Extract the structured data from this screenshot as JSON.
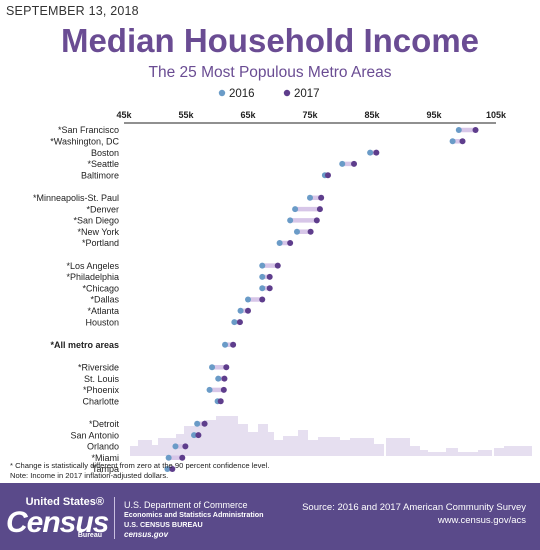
{
  "date": "SEPTEMBER 13, 2018",
  "chart_data": {
    "type": "dumbbell",
    "title": "Median Household Income",
    "subtitle": "The 25 Most Populous Metro Areas",
    "legend": [
      {
        "label": "2016",
        "color": "#6a9bc7"
      },
      {
        "label": "2017",
        "color": "#5e3d8c"
      }
    ],
    "xticks": [
      "45k",
      "55k",
      "65k",
      "75k",
      "85k",
      "95k",
      "105k"
    ],
    "xlim": [
      45000,
      105000
    ],
    "groups": [
      [
        {
          "name": "*San Francisco",
          "v2016": 99000,
          "v2017": 101700
        },
        {
          "name": "*Washington, DC",
          "v2016": 98000,
          "v2017": 99600
        },
        {
          "name": "Boston",
          "v2016": 84700,
          "v2017": 85700
        },
        {
          "name": "*Seattle",
          "v2016": 80200,
          "v2017": 82100
        },
        {
          "name": "Baltimore",
          "v2016": 77400,
          "v2017": 77900
        }
      ],
      [
        {
          "name": "*Minneapolis-St. Paul",
          "v2016": 75000,
          "v2017": 76800
        },
        {
          "name": "*Denver",
          "v2016": 72600,
          "v2017": 76600
        },
        {
          "name": "*San Diego",
          "v2016": 71800,
          "v2017": 76100
        },
        {
          "name": "*New York",
          "v2016": 72900,
          "v2017": 75100
        },
        {
          "name": "*Portland",
          "v2016": 70100,
          "v2017": 71800
        }
      ],
      [
        {
          "name": "*Los Angeles",
          "v2016": 67300,
          "v2017": 69800
        },
        {
          "name": "*Philadelphia",
          "v2016": 67300,
          "v2017": 68500
        },
        {
          "name": "*Chicago",
          "v2016": 67300,
          "v2017": 68500
        },
        {
          "name": "*Dallas",
          "v2016": 65000,
          "v2017": 67300
        },
        {
          "name": "*Atlanta",
          "v2016": 63800,
          "v2017": 65000
        },
        {
          "name": "Houston",
          "v2016": 62800,
          "v2017": 63700
        }
      ],
      [
        {
          "name": "*All metro areas",
          "v2016": 61300,
          "v2017": 62600,
          "bold": true
        }
      ],
      [
        {
          "name": "*Riverside",
          "v2016": 59200,
          "v2017": 61500
        },
        {
          "name": "St. Louis",
          "v2016": 60200,
          "v2017": 61200
        },
        {
          "name": "*Phoenix",
          "v2016": 58800,
          "v2017": 61100
        },
        {
          "name": "Charlotte",
          "v2016": 60100,
          "v2017": 60600
        }
      ],
      [
        {
          "name": "*Detroit",
          "v2016": 56800,
          "v2017": 58000
        },
        {
          "name": "San Antonio",
          "v2016": 56300,
          "v2017": 57000
        },
        {
          "name": "Orlando",
          "v2016": 53300,
          "v2017": 54900
        },
        {
          "name": "*Miami",
          "v2016": 52200,
          "v2017": 54400
        },
        {
          "name": "Tampa",
          "v2016": 52000,
          "v2017": 52800
        }
      ]
    ]
  },
  "footnotes": [
    "* Change is statistically different from zero at the 90 percent confidence level.",
    "Note: Income in 2017 inflation-adjusted dollars."
  ],
  "footer": {
    "logo_us": "United States®",
    "logo_census": "Census",
    "logo_bureau": "Bureau",
    "agency_line1": "U.S. Department of Commerce",
    "agency_line2": "Economics and Statistics Administration",
    "agency_line3": "U.S. CENSUS BUREAU",
    "agency_line4": "census.gov",
    "source_line1": "Source: 2016 and 2017 American Community Survey",
    "source_line2": "www.census.gov/acs"
  },
  "colors": {
    "brand_purple": "#6a4c93",
    "footer_bg": "#5a4a8a",
    "connector": "#d7c6e8",
    "skyline": "#e6dff0"
  }
}
